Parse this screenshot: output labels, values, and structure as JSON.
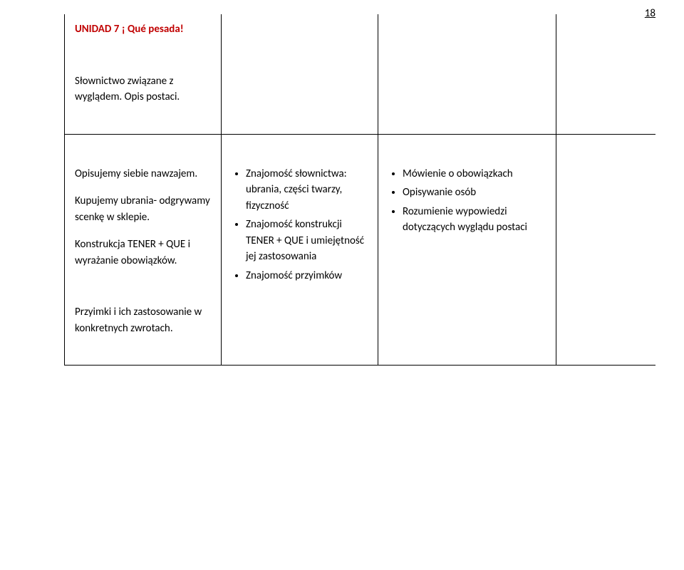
{
  "page_number": "18",
  "row1": {
    "col1": {
      "heading_prefix": "UNIDAD 7 ",
      "heading_accent": "¡ Qué pesada!",
      "text": "Słownictwo związane z wyglądem. Opis postaci."
    }
  },
  "row2": {
    "col1": {
      "p1": "Opisujemy siebie nawzajem.",
      "p2": "Kupujemy ubrania- odgrywamy scenkę w sklepie.",
      "p3": "Konstrukcja TENER + QUE i wyrażanie obowiązków.",
      "p4": "Przyimki i ich zastosowanie w konkretnych zwrotach."
    },
    "col2": {
      "b1": "Znajomość słownictwa: ubrania, części twarzy, fizyczność",
      "b2": "Znajomość konstrukcji TENER + QUE  i umiejętność jej zastosowania",
      "b3": "Znajomość przyimków"
    },
    "col3": {
      "b1": "Mówienie o obowiązkach",
      "b2": "Opisywanie osób",
      "b3": "Rozumienie wypowiedzi dotyczących wyglądu postaci"
    }
  }
}
